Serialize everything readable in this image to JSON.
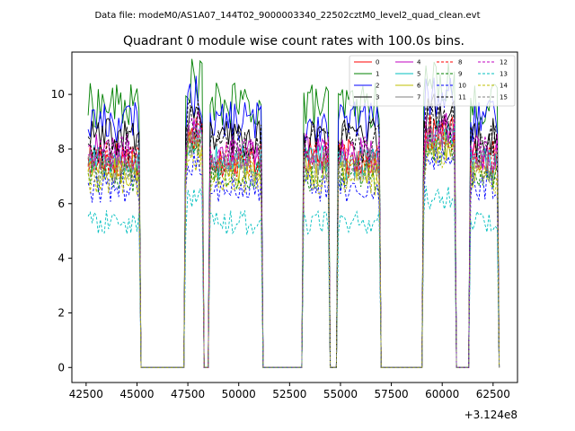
{
  "figure": {
    "suptitle": "Data file: modeM0/AS1A07_144T02_9000003340_22502cztM0_level2_quad_clean.evt"
  },
  "chart_data": {
    "type": "line",
    "title": "Quadrant 0 module wise count rates with 100.0s bins.",
    "xlabel": "",
    "ylabel": "",
    "x_offset_label": "+3.124e8",
    "xlim": [
      41800,
      63700
    ],
    "ylim": [
      -0.55,
      11.55
    ],
    "xticks": [
      42500,
      45000,
      47500,
      50000,
      52500,
      55000,
      57500,
      60000,
      62500
    ],
    "yticks": [
      0,
      2,
      4,
      6,
      8,
      10
    ],
    "legend": {
      "placement": "top-right",
      "columns": 4
    },
    "x_start": 42600,
    "x_step": 100,
    "segments": [
      {
        "x0": 42600,
        "x1": 45200,
        "state": "on"
      },
      {
        "x0": 45200,
        "x1": 47400,
        "state": "off"
      },
      {
        "x0": 47400,
        "x1": 48300,
        "state": "on"
      },
      {
        "x0": 48300,
        "x1": 48600,
        "state": "off"
      },
      {
        "x0": 48600,
        "x1": 51200,
        "state": "on"
      },
      {
        "x0": 51200,
        "x1": 53200,
        "state": "off"
      },
      {
        "x0": 53200,
        "x1": 54500,
        "state": "on"
      },
      {
        "x0": 54500,
        "x1": 54900,
        "state": "off"
      },
      {
        "x0": 54900,
        "x1": 57000,
        "state": "on"
      },
      {
        "x0": 57000,
        "x1": 59100,
        "state": "off"
      },
      {
        "x0": 59100,
        "x1": 60700,
        "state": "on"
      },
      {
        "x0": 60700,
        "x1": 61400,
        "state": "off"
      },
      {
        "x0": 61400,
        "x1": 62800,
        "state": "on"
      }
    ],
    "series": [
      {
        "name": "0",
        "color": "#ff0000",
        "dash": "solid",
        "level": 7.7
      },
      {
        "name": "1",
        "color": "#008000",
        "dash": "solid",
        "level": 9.6
      },
      {
        "name": "2",
        "color": "#0000ff",
        "dash": "solid",
        "level": 9.0
      },
      {
        "name": "3",
        "color": "#000000",
        "dash": "solid",
        "level": 8.4
      },
      {
        "name": "4",
        "color": "#c000c0",
        "dash": "solid",
        "level": 7.9
      },
      {
        "name": "5",
        "color": "#00bfbf",
        "dash": "solid",
        "level": 7.5
      },
      {
        "name": "6",
        "color": "#bfbf00",
        "dash": "solid",
        "level": 7.2
      },
      {
        "name": "7",
        "color": "#808080",
        "dash": "solid",
        "level": 7.4
      },
      {
        "name": "8",
        "color": "#ff0000",
        "dash": "dashed",
        "level": 7.6
      },
      {
        "name": "9",
        "color": "#008000",
        "dash": "dashed",
        "level": 7.0
      },
      {
        "name": "10",
        "color": "#0000ff",
        "dash": "dashed",
        "level": 6.6
      },
      {
        "name": "11",
        "color": "#000000",
        "dash": "dashed",
        "level": 8.2
      },
      {
        "name": "12",
        "color": "#c000c0",
        "dash": "dashed",
        "level": 7.8
      },
      {
        "name": "13",
        "color": "#00bfbf",
        "dash": "dashed",
        "level": 5.3
      },
      {
        "name": "14",
        "color": "#bfbf00",
        "dash": "dashed",
        "level": 6.9
      },
      {
        "name": "15",
        "color": "#808080",
        "dash": "dashed",
        "level": 7.3
      }
    ]
  }
}
